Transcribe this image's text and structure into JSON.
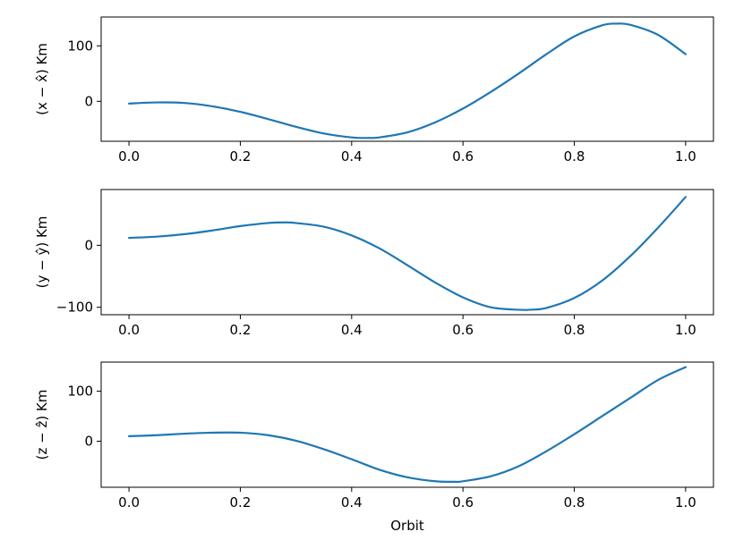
{
  "chart_data": [
    {
      "type": "line",
      "ylabel": "(x − x̂) Km",
      "xlabel": "",
      "xlim": [
        -0.05,
        1.05
      ],
      "ylim": [
        -72,
        152
      ],
      "xticks": [
        0.0,
        0.2,
        0.4,
        0.6,
        0.8,
        1.0
      ],
      "xtick_labels": [
        "0.0",
        "0.2",
        "0.4",
        "0.6",
        "0.8",
        "1.0"
      ],
      "yticks": [
        0,
        100
      ],
      "ytick_labels": [
        "0",
        "100"
      ],
      "grid": false,
      "line_color": "#1f77b4",
      "series": [
        {
          "x": [
            0.0,
            0.05,
            0.1,
            0.15,
            0.2,
            0.25,
            0.3,
            0.35,
            0.4,
            0.43,
            0.45,
            0.5,
            0.55,
            0.6,
            0.65,
            0.7,
            0.75,
            0.8,
            0.85,
            0.875,
            0.9,
            0.95,
            1.0
          ],
          "y": [
            -4,
            -2,
            -3,
            -9,
            -19,
            -32,
            -46,
            -58,
            -65,
            -66,
            -65,
            -56,
            -38,
            -13,
            17,
            50,
            85,
            117,
            137,
            140,
            138,
            120,
            85
          ]
        }
      ]
    },
    {
      "type": "line",
      "ylabel": "(y − ŷ) Km",
      "xlabel": "",
      "xlim": [
        -0.05,
        1.05
      ],
      "ylim": [
        -112,
        90
      ],
      "xticks": [
        0.0,
        0.2,
        0.4,
        0.6,
        0.8,
        1.0
      ],
      "xtick_labels": [
        "0.0",
        "0.2",
        "0.4",
        "0.6",
        "0.8",
        "1.0"
      ],
      "yticks": [
        -100,
        0
      ],
      "ytick_labels": [
        "−100",
        "0"
      ],
      "grid": false,
      "line_color": "#1f77b4",
      "series": [
        {
          "x": [
            0.0,
            0.05,
            0.1,
            0.15,
            0.2,
            0.25,
            0.28,
            0.3,
            0.35,
            0.4,
            0.45,
            0.5,
            0.55,
            0.6,
            0.65,
            0.7,
            0.72,
            0.75,
            0.8,
            0.85,
            0.9,
            0.95,
            1.0
          ],
          "y": [
            12,
            14,
            18,
            24,
            31,
            36,
            37,
            36,
            30,
            16,
            -5,
            -32,
            -60,
            -84,
            -100,
            -104,
            -104,
            -101,
            -85,
            -57,
            -18,
            28,
            78
          ]
        }
      ]
    },
    {
      "type": "line",
      "ylabel": "(z − ẑ) Km",
      "xlabel": "Orbit",
      "xlim": [
        -0.05,
        1.05
      ],
      "ylim": [
        -92,
        158
      ],
      "xticks": [
        0.0,
        0.2,
        0.4,
        0.6,
        0.8,
        1.0
      ],
      "xtick_labels": [
        "0.0",
        "0.2",
        "0.4",
        "0.6",
        "0.8",
        "1.0"
      ],
      "yticks": [
        0,
        100
      ],
      "ytick_labels": [
        "0",
        "100"
      ],
      "grid": false,
      "line_color": "#1f77b4",
      "series": [
        {
          "x": [
            0.0,
            0.05,
            0.1,
            0.15,
            0.2,
            0.25,
            0.3,
            0.35,
            0.4,
            0.45,
            0.5,
            0.55,
            0.585,
            0.6,
            0.65,
            0.7,
            0.75,
            0.8,
            0.85,
            0.9,
            0.95,
            1.0
          ],
          "y": [
            10,
            12,
            15,
            17,
            17,
            12,
            1,
            -16,
            -36,
            -57,
            -72,
            -80,
            -81,
            -80,
            -70,
            -50,
            -20,
            14,
            50,
            86,
            122,
            148
          ]
        }
      ]
    }
  ]
}
